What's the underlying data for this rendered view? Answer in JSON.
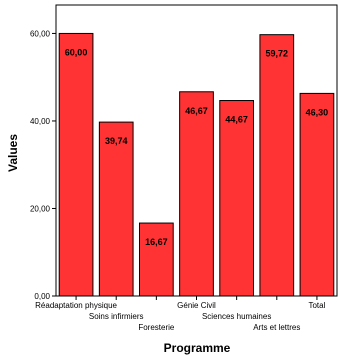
{
  "chart_data": {
    "type": "bar",
    "categories": [
      "Réadaptation physique",
      "Soins infirmiers",
      "Foresterie",
      "Génie Civil",
      "Sciences humaines",
      "Arts et lettres",
      "Total"
    ],
    "values": [
      60.0,
      39.74,
      16.67,
      46.67,
      44.67,
      59.72,
      46.3
    ],
    "value_labels": [
      "60,00",
      "39,74",
      "16,67",
      "46,67",
      "44,67",
      "59,72",
      "46,30"
    ],
    "yticks": [
      0,
      20,
      40,
      60
    ],
    "ytick_labels": [
      "0,00",
      "20,00",
      "40,00",
      "60,00"
    ],
    "ylim": [
      0,
      66.5
    ],
    "xlabel": "Programme",
    "ylabel": "Values",
    "bar_color": "#ff3333",
    "grid": false
  }
}
